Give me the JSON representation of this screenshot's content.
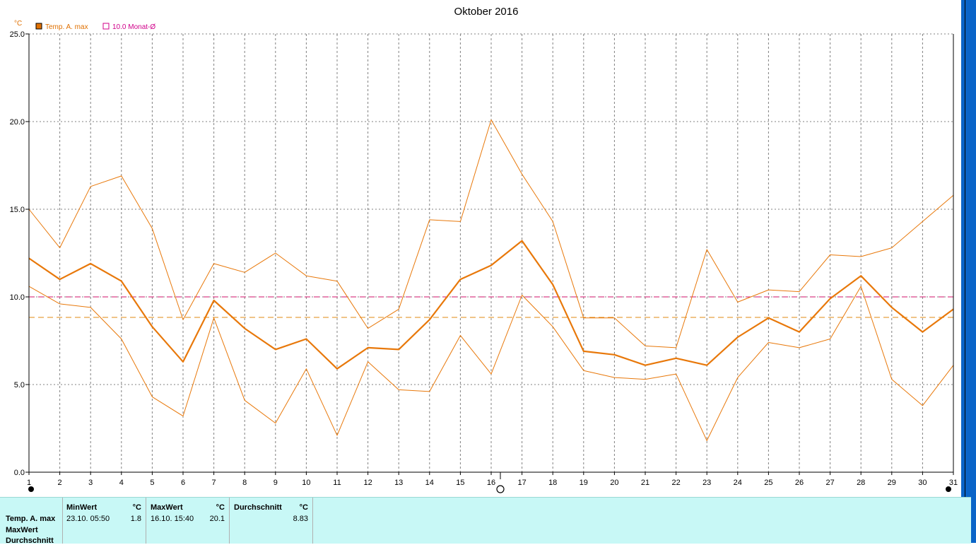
{
  "chart_data": {
    "type": "line",
    "title": "Oktober 2016",
    "unit": "°C",
    "x": [
      1,
      2,
      3,
      4,
      5,
      6,
      7,
      8,
      9,
      10,
      11,
      12,
      13,
      14,
      15,
      16,
      17,
      18,
      19,
      20,
      21,
      22,
      23,
      24,
      25,
      26,
      27,
      28,
      29,
      30,
      31
    ],
    "xticks": [
      "1",
      "2",
      "3",
      "4",
      "5",
      "6",
      "7",
      "8",
      "9",
      "10",
      "11",
      "12",
      "13",
      "14",
      "15",
      "16",
      "17",
      "18",
      "19",
      "20",
      "21",
      "22",
      "23",
      "24",
      "25",
      "26",
      "27",
      "28",
      "29",
      "30",
      "31"
    ],
    "yticks": [
      "0.0",
      "5.0",
      "10.0",
      "15.0",
      "20.0",
      "25.0"
    ],
    "ylim": [
      0,
      25
    ],
    "grid": true,
    "legend": [
      {
        "label": "Temp. A. max",
        "color": "#e07000"
      },
      {
        "label": "10.0 Monat-Ø",
        "color": "#d0008a"
      }
    ],
    "series": [
      {
        "name": "Temp. A. max",
        "color": "#e8780a",
        "values": [
          12.2,
          11.0,
          11.9,
          10.9,
          8.3,
          6.3,
          9.8,
          8.2,
          7.0,
          7.6,
          5.9,
          7.1,
          7.0,
          8.7,
          11.0,
          11.8,
          13.2,
          10.7,
          6.9,
          6.7,
          6.1,
          6.5,
          6.1,
          7.7,
          8.8,
          8.0,
          9.9,
          11.2,
          9.4,
          8.0,
          9.3
        ]
      },
      {
        "color": "#e8780a",
        "values": [
          15.0,
          12.8,
          16.3,
          16.9,
          13.9,
          8.7,
          11.9,
          11.4,
          12.5,
          11.2,
          10.9,
          8.2,
          9.3,
          14.4,
          14.3,
          20.1,
          17.0,
          14.3,
          8.8,
          8.8,
          7.2,
          7.1,
          12.7,
          9.7,
          10.4,
          10.3,
          12.4,
          12.3,
          12.8,
          14.3,
          15.8
        ]
      },
      {
        "color": "#e8780a",
        "values": [
          10.6,
          9.6,
          9.4,
          7.6,
          4.3,
          3.2,
          8.8,
          4.1,
          2.8,
          5.9,
          2.1,
          6.3,
          4.7,
          4.6,
          7.8,
          5.6,
          10.1,
          8.3,
          5.8,
          5.4,
          5.3,
          5.6,
          1.8,
          5.4,
          7.4,
          7.1,
          7.6,
          10.6,
          5.3,
          3.8,
          6.1
        ]
      }
    ],
    "reference_lines": [
      {
        "value": 10.0,
        "color": "#d0106a"
      },
      {
        "value": 8.83,
        "color": "#e08a10"
      }
    ]
  },
  "stats": {
    "row_labels": [
      "Temp. A. max",
      "MaxWert",
      "Durchschnitt"
    ],
    "minwert": {
      "header": "MinWert",
      "unit": "°C",
      "time": "23.10.  05:50",
      "value": "1.8"
    },
    "maxwert": {
      "header": "MaxWert",
      "unit": "°C",
      "time": "16.10.  15:40",
      "value": "20.1"
    },
    "durchschnitt": {
      "header": "Durchschnitt",
      "unit": "°C",
      "value": "8.83"
    }
  }
}
